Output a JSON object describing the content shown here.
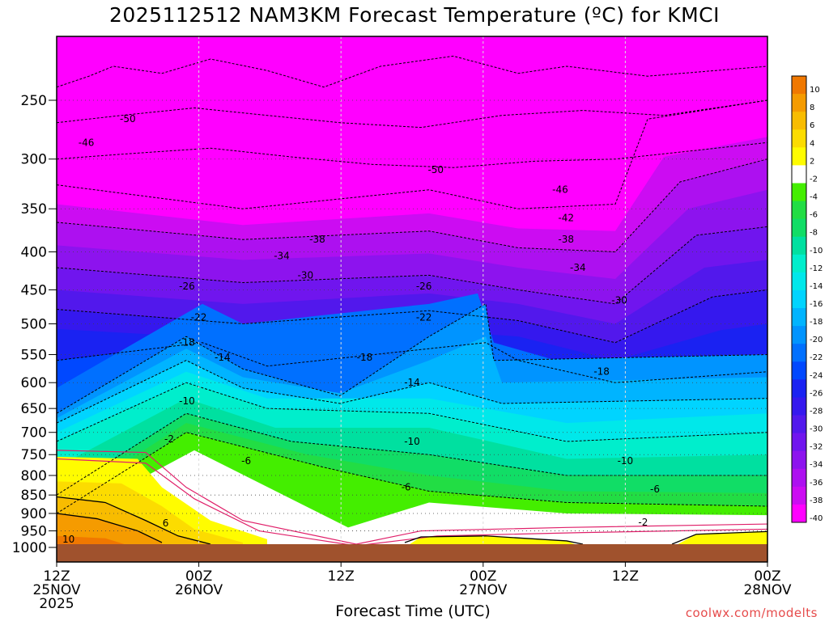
{
  "chart_data": {
    "type": "heatmap",
    "title": "2025112512 NAM3KM Forecast Temperature (ºC) for KMCI",
    "xlabel": "Forecast Time (UTC)",
    "ylabel": "",
    "x_ticks": [
      {
        "hour": 0,
        "l1": "12Z",
        "l2": "25NOV",
        "l3": "2025"
      },
      {
        "hour": 12,
        "l1": "00Z",
        "l2": "26NOV",
        "l3": ""
      },
      {
        "hour": 24,
        "l1": "12Z",
        "l2": "",
        "l3": ""
      },
      {
        "hour": 36,
        "l1": "00Z",
        "l2": "27NOV",
        "l3": ""
      },
      {
        "hour": 48,
        "l1": "12Z",
        "l2": "",
        "l3": ""
      },
      {
        "hour": 60,
        "l1": "00Z",
        "l2": "28NOV",
        "l3": ""
      }
    ],
    "xlim_hours": [
      0,
      60
    ],
    "y_ticks": [
      250,
      300,
      350,
      400,
      450,
      500,
      550,
      600,
      650,
      700,
      750,
      800,
      850,
      900,
      950,
      1000
    ],
    "ylim_hpa": [
      200,
      1000
    ],
    "y_scale": "log",
    "grid": true,
    "colorbar_levels": [
      10,
      8,
      6,
      4,
      2,
      -2,
      -4,
      -6,
      -8,
      -10,
      -12,
      -14,
      -16,
      -18,
      -20,
      -22,
      -24,
      -26,
      -28,
      -30,
      -32,
      -34,
      -36,
      -38,
      -40
    ],
    "colorbar_colors": [
      "#f07800",
      "#f59b00",
      "#f8bc00",
      "#fcdc00",
      "#fffc00",
      "#ffffff",
      "#44ee00",
      "#22dd44",
      "#11dd66",
      "#00e0a0",
      "#00eecc",
      "#00e8ea",
      "#00d4ff",
      "#00b4ff",
      "#0094ff",
      "#0070ff",
      "#0048ff",
      "#1a22f2",
      "#3518ee",
      "#5218ec",
      "#7015ee",
      "#8d13ee",
      "#ad10f0",
      "#cc0cf2",
      "#ff00ff"
    ],
    "terrain_color": "#a0522d",
    "contour_labels": [
      {
        "text": "-50",
        "hour": 6,
        "p": 265
      },
      {
        "text": "-46",
        "hour": 2.5,
        "p": 285
      },
      {
        "text": "-50",
        "hour": 32,
        "p": 310
      },
      {
        "text": "-46",
        "hour": 42.5,
        "p": 330
      },
      {
        "text": "-42",
        "hour": 43,
        "p": 360
      },
      {
        "text": "-38",
        "hour": 22,
        "p": 385
      },
      {
        "text": "-38",
        "hour": 43,
        "p": 385
      },
      {
        "text": "-34",
        "hour": 19,
        "p": 405
      },
      {
        "text": "-34",
        "hour": 44,
        "p": 420
      },
      {
        "text": "-30",
        "hour": 21,
        "p": 430
      },
      {
        "text": "-30",
        "hour": 47.5,
        "p": 465
      },
      {
        "text": "-26",
        "hour": 11,
        "p": 445
      },
      {
        "text": "-26",
        "hour": 31,
        "p": 445
      },
      {
        "text": "-22",
        "hour": 12,
        "p": 490
      },
      {
        "text": "-22",
        "hour": 31,
        "p": 490
      },
      {
        "text": "-18",
        "hour": 11,
        "p": 530
      },
      {
        "text": "-18",
        "hour": 26,
        "p": 555
      },
      {
        "text": "-18",
        "hour": 46,
        "p": 580
      },
      {
        "text": "-14",
        "hour": 14,
        "p": 555
      },
      {
        "text": "-14",
        "hour": 30,
        "p": 600
      },
      {
        "text": "-10",
        "hour": 11,
        "p": 635
      },
      {
        "text": "-10",
        "hour": 30,
        "p": 720
      },
      {
        "text": "-10",
        "hour": 48,
        "p": 765
      },
      {
        "text": "-6",
        "hour": 16,
        "p": 765
      },
      {
        "text": "-6",
        "hour": 29.5,
        "p": 830
      },
      {
        "text": "-6",
        "hour": 50.5,
        "p": 835
      },
      {
        "text": "-2",
        "hour": 9.5,
        "p": 715
      },
      {
        "text": "-2",
        "hour": 49.5,
        "p": 925
      },
      {
        "text": "6",
        "hour": 9.2,
        "p": 928
      },
      {
        "text": "10",
        "hour": 1,
        "p": 975
      }
    ]
  },
  "credit": "coolwx.com/modelts"
}
